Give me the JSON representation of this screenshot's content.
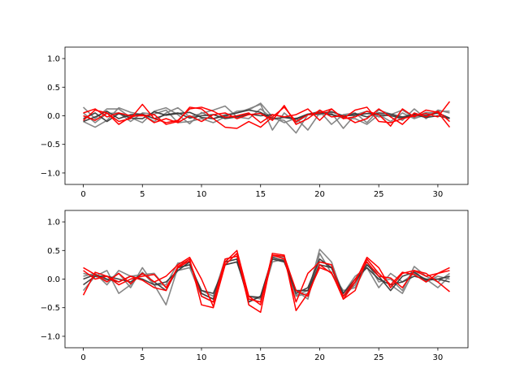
{
  "colors": {
    "gray": "#808080",
    "dark": "#3a3a3a",
    "red": "#ff0000"
  },
  "chart_data": [
    {
      "type": "line",
      "x": [
        0,
        1,
        2,
        3,
        4,
        5,
        6,
        7,
        8,
        9,
        10,
        11,
        12,
        13,
        14,
        15,
        16,
        17,
        18,
        19,
        20,
        21,
        22,
        23,
        24,
        25,
        26,
        27,
        28,
        29,
        30,
        31
      ],
      "xlim": [
        -1.55,
        32.55
      ],
      "ylim": [
        -1.2,
        1.2
      ],
      "xticks": [
        0,
        5,
        10,
        15,
        20,
        25,
        30
      ],
      "xtick_labels": [
        "0",
        "5",
        "10",
        "15",
        "20",
        "25",
        "30"
      ],
      "yticks": [
        -1.0,
        -0.5,
        0.0,
        0.5,
        1.0
      ],
      "ytick_labels": [
        "−1.0",
        "−0.5",
        "0.0",
        "0.5",
        "1.0"
      ],
      "grid": false,
      "series": [
        {
          "color": "gray",
          "values": [
            0.15,
            -0.05,
            0.12,
            0.12,
            -0.03,
            -0.12,
            0.08,
            0.14,
            0.02,
            -0.14,
            0.06,
            -0.05,
            0.02,
            0.05,
            0.12,
            0.2,
            -0.25,
            0.05,
            -0.12,
            0.02,
            0.08,
            -0.15,
            0.02,
            0.05,
            -0.12,
            0.1,
            0.03,
            -0.08,
            0.12,
            -0.05,
            0.1,
            0.05
          ]
        },
        {
          "color": "gray",
          "values": [
            -0.1,
            -0.2,
            -0.08,
            0.14,
            0.06,
            0.02,
            -0.1,
            0.05,
            0.14,
            -0.02,
            0.04,
            0.1,
            0.17,
            -0.02,
            -0.05,
            0.12,
            -0.05,
            -0.08,
            -0.3,
            0.02,
            0.02,
            0.05,
            -0.22,
            0.02,
            0.08,
            -0.02,
            0.02,
            0.1,
            -0.03,
            0.06,
            0.04,
            -0.05
          ]
        },
        {
          "color": "gray",
          "values": [
            0.05,
            -0.12,
            0.04,
            0.05,
            -0.1,
            0.05,
            0.03,
            0.1,
            -0.12,
            -0.1,
            -0.05,
            -0.12,
            -0.02,
            0.08,
            0.1,
            0.22,
            -0.02,
            -0.12,
            -0.04,
            -0.25,
            0.05,
            0.02,
            -0.04,
            -0.05,
            -0.15,
            0.02,
            -0.1,
            0.05,
            -0.05,
            0.02,
            0.08,
            0.08
          ]
        },
        {
          "color": "dark",
          "values": [
            -0.05,
            0.05,
            -0.1,
            0.04,
            -0.04,
            -0.05,
            0.07,
            0.01,
            0.04,
            0.06,
            -0.03,
            -0.05,
            0.0,
            0.05,
            0.1,
            0.06,
            -0.05,
            -0.03,
            -0.06,
            0.02,
            0.04,
            0.07,
            0.0,
            0.01,
            0.04,
            0.02,
            0.0,
            -0.04,
            0.03,
            0.0,
            0.05,
            -0.04
          ]
        },
        {
          "color": "dark",
          "values": [
            -0.1,
            -0.02,
            0.08,
            -0.05,
            0.02,
            0.03,
            -0.05,
            0.02,
            0.05,
            -0.04,
            0.0,
            0.02,
            -0.05,
            -0.02,
            0.03,
            0.0,
            0.02,
            -0.02,
            -0.05,
            0.03,
            0.06,
            0.02,
            -0.02,
            0.04,
            -0.02,
            0.05,
            0.03,
            -0.02,
            0.02,
            -0.03,
            0.0,
            -0.05
          ]
        },
        {
          "color": "red",
          "values": [
            0.05,
            0.12,
            -0.02,
            0.05,
            0.0,
            0.0,
            0.02,
            -0.15,
            -0.1,
            0.15,
            0.12,
            -0.05,
            -0.2,
            -0.22,
            -0.1,
            -0.2,
            -0.02,
            0.15,
            -0.1,
            0.02,
            0.05,
            0.12,
            -0.05,
            0.1,
            0.15,
            -0.1,
            -0.12,
            -0.05,
            0.0,
            0.04,
            -0.02,
            0.25
          ]
        },
        {
          "color": "red",
          "values": [
            -0.08,
            0.1,
            0.05,
            -0.1,
            -0.05,
            0.2,
            -0.05,
            -0.12,
            -0.08,
            0.12,
            0.15,
            0.08,
            -0.03,
            0.0,
            0.05,
            -0.12,
            0.02,
            -0.02,
            0.02,
            0.12,
            -0.08,
            0.12,
            -0.05,
            -0.02,
            0.08,
            0.02,
            -0.18,
            0.12,
            -0.02,
            0.1,
            0.06,
            -0.2
          ]
        },
        {
          "color": "red",
          "values": [
            0.0,
            -0.08,
            0.05,
            -0.15,
            -0.02,
            0.02,
            -0.12,
            -0.05,
            -0.12,
            0.0,
            -0.1,
            0.02,
            0.05,
            -0.05,
            0.02,
            0.04,
            -0.08,
            0.18,
            -0.15,
            -0.05,
            0.1,
            -0.02,
            0.0,
            -0.12,
            -0.05,
            0.12,
            -0.02,
            -0.15,
            0.05,
            -0.02,
            0.08,
            -0.1
          ]
        }
      ]
    },
    {
      "type": "line",
      "x": [
        0,
        1,
        2,
        3,
        4,
        5,
        6,
        7,
        8,
        9,
        10,
        11,
        12,
        13,
        14,
        15,
        16,
        17,
        18,
        19,
        20,
        21,
        22,
        23,
        24,
        25,
        26,
        27,
        28,
        29,
        30,
        31
      ],
      "xlim": [
        -1.55,
        32.55
      ],
      "ylim": [
        -1.2,
        1.2
      ],
      "xticks": [
        0,
        5,
        10,
        15,
        20,
        25,
        30
      ],
      "xtick_labels": [
        "0",
        "5",
        "10",
        "15",
        "20",
        "25",
        "30"
      ],
      "yticks": [
        -1.0,
        -0.5,
        0.0,
        0.5,
        1.0
      ],
      "ytick_labels": [
        "−1.0",
        "−0.5",
        "0.0",
        "0.5",
        "1.0"
      ],
      "grid": false,
      "series": [
        {
          "color": "gray",
          "values": [
            0.1,
            0.05,
            -0.02,
            0.1,
            -0.15,
            0.2,
            -0.1,
            -0.45,
            0.2,
            0.25,
            -0.2,
            -0.3,
            0.35,
            0.4,
            -0.3,
            -0.35,
            0.4,
            0.38,
            -0.3,
            -0.25,
            0.52,
            0.3,
            -0.3,
            -0.1,
            0.3,
            -0.05,
            0.0,
            -0.2,
            0.22,
            0.05,
            -0.05,
            0.1
          ]
        },
        {
          "color": "gray",
          "values": [
            -0.2,
            0.05,
            0.15,
            -0.25,
            -0.1,
            0.12,
            -0.1,
            -0.1,
            0.28,
            0.3,
            -0.25,
            -0.35,
            0.3,
            0.35,
            -0.4,
            -0.3,
            0.35,
            0.3,
            -0.2,
            -0.35,
            0.45,
            0.1,
            -0.2,
            -0.15,
            0.25,
            0.1,
            -0.1,
            -0.25,
            0.15,
            -0.05,
            0.05,
            0.0
          ]
        },
        {
          "color": "gray",
          "values": [
            0.05,
            0.1,
            -0.1,
            0.15,
            0.05,
            0.08,
            0.1,
            -0.15,
            0.15,
            0.2,
            -0.3,
            -0.4,
            0.25,
            0.3,
            -0.35,
            -0.4,
            0.3,
            0.35,
            -0.28,
            -0.2,
            0.3,
            0.25,
            -0.25,
            0.05,
            0.2,
            -0.15,
            0.1,
            -0.05,
            0.1,
            0.0,
            -0.15,
            0.05
          ]
        },
        {
          "color": "dark",
          "values": [
            0.0,
            0.08,
            0.0,
            -0.05,
            0.05,
            0.0,
            -0.1,
            -0.05,
            0.15,
            0.3,
            -0.25,
            -0.35,
            0.3,
            0.35,
            -0.4,
            -0.3,
            0.38,
            0.32,
            -0.25,
            -0.15,
            0.35,
            0.2,
            -0.3,
            -0.05,
            0.25,
            0.05,
            -0.2,
            0.05,
            0.12,
            -0.02,
            0.0,
            0.05
          ]
        },
        {
          "color": "dark",
          "values": [
            -0.1,
            0.05,
            0.05,
            0.0,
            -0.05,
            0.1,
            -0.05,
            -0.2,
            0.2,
            0.25,
            -0.2,
            -0.25,
            0.25,
            0.3,
            -0.3,
            -0.32,
            0.35,
            0.3,
            -0.2,
            -0.2,
            0.25,
            0.2,
            -0.25,
            0.0,
            0.2,
            0.0,
            -0.1,
            -0.05,
            0.05,
            0.0,
            0.0,
            -0.05
          ]
        },
        {
          "color": "red",
          "values": [
            0.2,
            0.08,
            -0.05,
            0.1,
            -0.08,
            0.1,
            -0.05,
            0.05,
            0.25,
            0.38,
            0.0,
            -0.48,
            0.3,
            0.5,
            -0.3,
            -0.45,
            0.45,
            0.42,
            -0.55,
            -0.25,
            0.2,
            0.12,
            -0.35,
            -0.05,
            0.38,
            0.2,
            -0.15,
            0.1,
            0.15,
            0.05,
            0.1,
            0.15
          ]
        },
        {
          "color": "red",
          "values": [
            -0.28,
            0.12,
            0.05,
            -0.05,
            0.05,
            -0.02,
            -0.15,
            -0.2,
            0.22,
            0.35,
            -0.45,
            -0.5,
            0.25,
            0.45,
            -0.45,
            -0.58,
            0.42,
            0.4,
            -0.2,
            -0.3,
            0.25,
            0.1,
            -0.3,
            0.0,
            0.3,
            0.05,
            0.02,
            -0.15,
            0.15,
            0.1,
            -0.05,
            -0.22
          ]
        },
        {
          "color": "red",
          "values": [
            0.15,
            0.0,
            0.05,
            -0.1,
            0.0,
            0.05,
            0.08,
            -0.15,
            0.2,
            0.32,
            -0.3,
            -0.4,
            0.35,
            0.4,
            -0.35,
            -0.4,
            0.42,
            0.35,
            -0.4,
            0.1,
            0.3,
            0.25,
            -0.35,
            -0.2,
            0.35,
            0.1,
            -0.1,
            0.12,
            0.08,
            -0.05,
            0.1,
            0.2
          ]
        }
      ]
    }
  ]
}
